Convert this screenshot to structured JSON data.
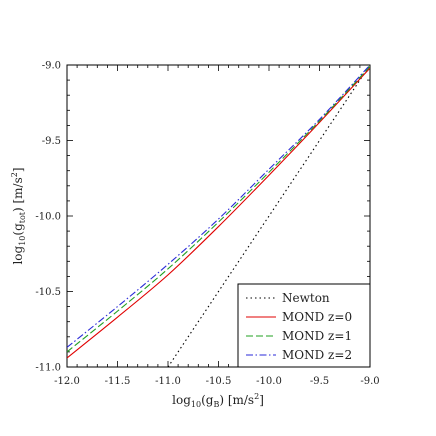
{
  "chart_data": {
    "type": "line",
    "title": "",
    "xlabel_main": "log",
    "xlabel_sub": "10",
    "xlabel_arg": "(g",
    "xlabel_arg_sub": "B",
    "xlabel_unit": ") [m/s",
    "xlabel_unit_sup": "2",
    "xlabel_close": "]",
    "ylabel_main": "log",
    "ylabel_sub": "10",
    "ylabel_arg": "(g",
    "ylabel_arg_sub": "tot",
    "ylabel_unit": ") [m/s",
    "ylabel_unit_sup": "2",
    "ylabel_close": "]",
    "xlim": [
      -12.0,
      -9.0
    ],
    "ylim": [
      -11.0,
      -9.0
    ],
    "xticks": [
      -12.0,
      -11.5,
      -11.0,
      -10.5,
      -10.0,
      -9.5,
      -9.0
    ],
    "xtick_labels": [
      "-12.0",
      "-11.5",
      "-11.0",
      "-10.5",
      "-10.0",
      "-9.5",
      "-9.0"
    ],
    "yticks": [
      -11.0,
      -10.5,
      -10.0,
      -9.5,
      -9.0
    ],
    "ytick_labels": [
      "-11.0",
      "-10.5",
      "-10.0",
      "-9.5",
      "-9.0"
    ],
    "grid": false,
    "legend_position": "bottom-right",
    "series": [
      {
        "name": "Newton",
        "color": "#000000",
        "dash": "1.5,3",
        "x": [
          -11.0,
          -9.0
        ],
        "y": [
          -11.0,
          -9.0
        ]
      },
      {
        "name": "MOND z=0",
        "color": "#e00000",
        "dash": "",
        "x": [
          -12.0,
          -11.5,
          -11.0,
          -10.5,
          -10.0,
          -9.5,
          -9.0
        ],
        "y": [
          -10.94,
          -10.67,
          -10.39,
          -10.07,
          -9.73,
          -9.38,
          -9.02
        ]
      },
      {
        "name": "MOND z=1",
        "color": "#22a022",
        "dash": "7,3",
        "x": [
          -12.0,
          -11.5,
          -11.0,
          -10.5,
          -10.0,
          -9.5,
          -9.0
        ],
        "y": [
          -10.9,
          -10.63,
          -10.35,
          -10.04,
          -9.71,
          -9.37,
          -9.01
        ]
      },
      {
        "name": "MOND z=2",
        "color": "#2a2ad8",
        "dash": "7,2.5,1.5,2.5",
        "x": [
          -12.0,
          -11.5,
          -11.0,
          -10.5,
          -10.0,
          -9.5,
          -9.0
        ],
        "y": [
          -10.87,
          -10.6,
          -10.32,
          -10.02,
          -9.69,
          -9.36,
          -9.0
        ]
      }
    ]
  }
}
